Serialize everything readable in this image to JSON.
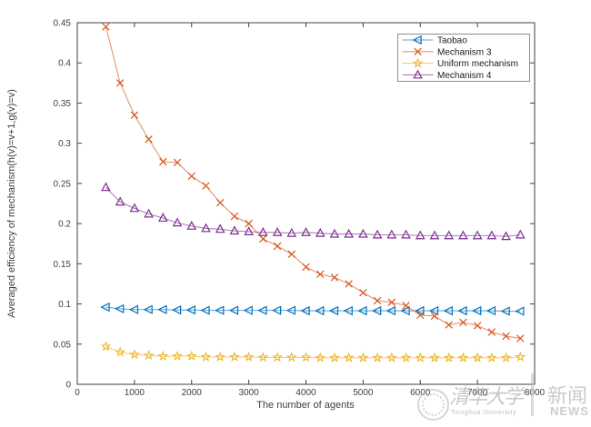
{
  "page": {
    "background": "#ffffff"
  },
  "watermark": {
    "seal_icon": "tsinghua-university-seal",
    "cn_main": "清华大学",
    "en_main": "Tsinghua University",
    "cn_news": "新闻",
    "en_news": "NEWS",
    "color": "#b2b2b2"
  },
  "chart_data": {
    "type": "line",
    "title": "",
    "xlabel": "The number of agents",
    "ylabel": "Averaged efficiency of mechanism(h(v)=v+1,g(v)=v)",
    "xlim": [
      0,
      8000
    ],
    "ylim": [
      0,
      0.45
    ],
    "grid": false,
    "legend_position": "top-right-inside",
    "axis_color": "#3f3f3f",
    "legend_border_color": "#8c8c8c",
    "xticks": [
      0,
      1000,
      2000,
      3000,
      4000,
      5000,
      6000,
      7000,
      8000
    ],
    "xtick_labels": [
      "0",
      "1000",
      "2000",
      "3000",
      "4000",
      "5000",
      "6000",
      "7000",
      "8000"
    ],
    "yticks": [
      0,
      0.05,
      0.1,
      0.15,
      0.2,
      0.25,
      0.3,
      0.35,
      0.4,
      0.45
    ],
    "ytick_labels": [
      "0",
      "0.05",
      "0.1",
      "0.15",
      "0.2",
      "0.25",
      "0.3",
      "0.35",
      "0.4",
      "0.45"
    ],
    "x": [
      500,
      750,
      1000,
      1250,
      1500,
      1750,
      2000,
      2250,
      2500,
      2750,
      3000,
      3250,
      3500,
      3750,
      4000,
      4250,
      4500,
      4750,
      5000,
      5250,
      5500,
      5750,
      6000,
      6250,
      6500,
      6750,
      7000,
      7250,
      7500,
      7750
    ],
    "series": [
      {
        "name": "Taobao",
        "color": "#0072BD",
        "marker": "triangle-left",
        "values": [
          0.096,
          0.094,
          0.093,
          0.093,
          0.093,
          0.0925,
          0.0925,
          0.092,
          0.092,
          0.092,
          0.092,
          0.092,
          0.092,
          0.092,
          0.0915,
          0.0915,
          0.0915,
          0.0915,
          0.0915,
          0.0915,
          0.0915,
          0.0915,
          0.0915,
          0.0915,
          0.0915,
          0.0915,
          0.0915,
          0.0915,
          0.091,
          0.091
        ]
      },
      {
        "name": "Mechanism 3",
        "color": "#D95319",
        "marker": "x",
        "values": [
          0.445,
          0.375,
          0.335,
          0.305,
          0.277,
          0.276,
          0.259,
          0.247,
          0.226,
          0.209,
          0.2,
          0.181,
          0.172,
          0.162,
          0.146,
          0.137,
          0.133,
          0.125,
          0.114,
          0.104,
          0.102,
          0.098,
          0.086,
          0.085,
          0.074,
          0.077,
          0.073,
          0.065,
          0.06,
          0.057
        ]
      },
      {
        "name": "Uniform mechanism",
        "color": "#EDB120",
        "marker": "star",
        "values": [
          0.047,
          0.04,
          0.037,
          0.036,
          0.035,
          0.035,
          0.035,
          0.034,
          0.034,
          0.034,
          0.034,
          0.0335,
          0.0335,
          0.0335,
          0.0335,
          0.033,
          0.033,
          0.033,
          0.033,
          0.033,
          0.033,
          0.033,
          0.033,
          0.033,
          0.033,
          0.033,
          0.033,
          0.033,
          0.033,
          0.034
        ]
      },
      {
        "name": "Mechanism 4",
        "color": "#7E2F8E",
        "marker": "triangle-up",
        "values": [
          0.245,
          0.227,
          0.219,
          0.212,
          0.207,
          0.201,
          0.197,
          0.194,
          0.193,
          0.191,
          0.19,
          0.189,
          0.189,
          0.188,
          0.189,
          0.188,
          0.187,
          0.187,
          0.187,
          0.186,
          0.186,
          0.186,
          0.185,
          0.185,
          0.185,
          0.185,
          0.185,
          0.185,
          0.184,
          0.186
        ]
      }
    ]
  }
}
